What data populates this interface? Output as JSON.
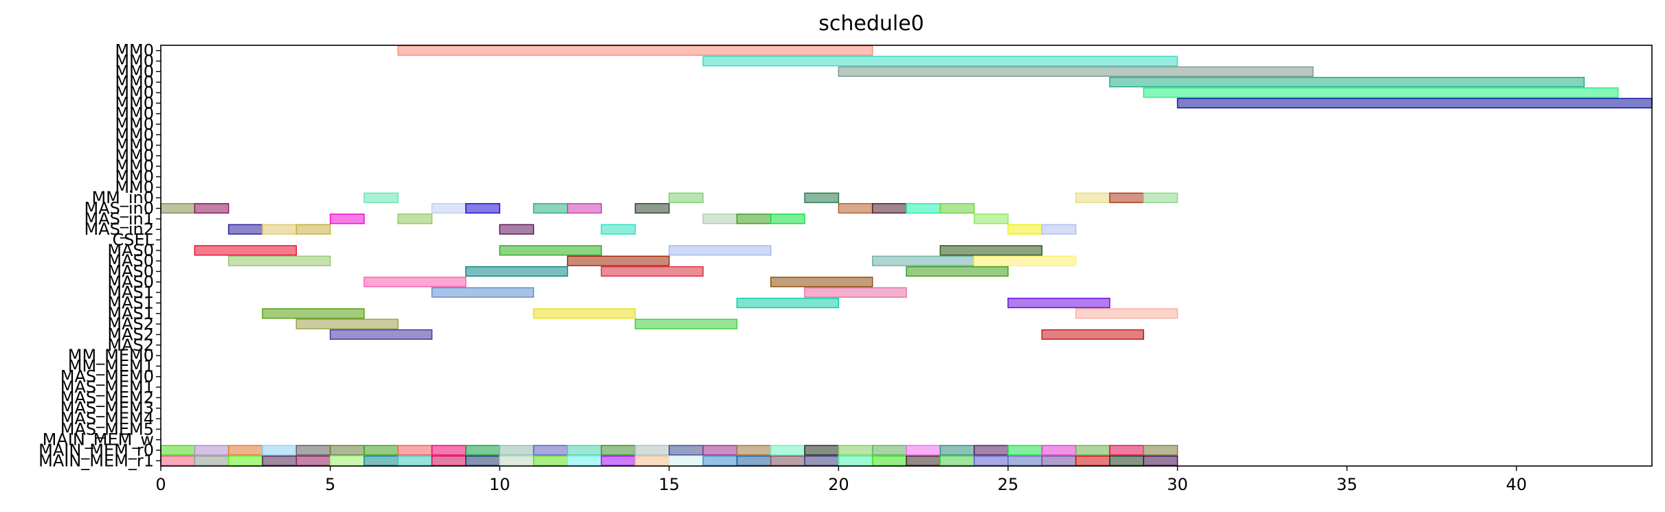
{
  "chart_data": {
    "type": "gantt",
    "title": "schedule0",
    "xlabel": "",
    "ylabel": "",
    "xlim": [
      0,
      44
    ],
    "xticks": [
      0,
      5,
      10,
      15,
      20,
      25,
      30,
      35,
      40
    ],
    "grid": false,
    "rows": [
      "MM0",
      "MM0",
      "MM0",
      "MM0",
      "MM0",
      "MM0",
      "MM0",
      "MM0",
      "MM0",
      "MM0",
      "MM0",
      "MM0",
      "MM0",
      "MM0",
      "MM_in0",
      "MAS_in0",
      "MAS_in1",
      "MAS_in2",
      "CSEL",
      "MAS0",
      "MAS0",
      "MAS0",
      "MAS0",
      "MAS1",
      "MAS1",
      "MAS1",
      "MAS2",
      "MAS2",
      "MAS2",
      "MM_MEM0",
      "MM_MEM1",
      "MAS_MEM0",
      "MAS_MEM1",
      "MAS_MEM2",
      "MAS_MEM3",
      "MAS_MEM4",
      "MAS_MEM5",
      "MAIN_MEM_w",
      "MAIN_MEM_r0",
      "MAIN_MEM_r1"
    ],
    "tasks": [
      {
        "row": 0,
        "start": 7,
        "end": 21,
        "color": "#f98c7c"
      },
      {
        "row": 1,
        "start": 16,
        "end": 30,
        "color": "#3fdcc4"
      },
      {
        "row": 2,
        "start": 20,
        "end": 34,
        "color": "#7f9c90"
      },
      {
        "row": 3,
        "start": 28,
        "end": 42,
        "color": "#22b08a"
      },
      {
        "row": 4,
        "start": 29,
        "end": 43,
        "color": "#24f080"
      },
      {
        "row": 5,
        "start": 30,
        "end": 44,
        "color": "#1414a0"
      },
      {
        "row": 14,
        "start": 6,
        "end": 7,
        "color": "#66e8b0"
      },
      {
        "row": 14,
        "start": 15,
        "end": 16,
        "color": "#7ed072"
      },
      {
        "row": 14,
        "start": 19,
        "end": 20,
        "color": "#2a7a50"
      },
      {
        "row": 14,
        "start": 27,
        "end": 28,
        "color": "#e8dc80"
      },
      {
        "row": 14,
        "start": 28,
        "end": 29,
        "color": "#b03a20"
      },
      {
        "row": 14,
        "start": 29,
        "end": 30,
        "color": "#90d890"
      },
      {
        "row": 15,
        "start": 0,
        "end": 1,
        "color": "#889050"
      },
      {
        "row": 15,
        "start": 1,
        "end": 2,
        "color": "#8a1a5a"
      },
      {
        "row": 15,
        "start": 8,
        "end": 9,
        "color": "#c0d0f0"
      },
      {
        "row": 15,
        "start": 9,
        "end": 10,
        "color": "#2010d0"
      },
      {
        "row": 15,
        "start": 11,
        "end": 12,
        "color": "#30b080"
      },
      {
        "row": 15,
        "start": 12,
        "end": 13,
        "color": "#d040b0"
      },
      {
        "row": 15,
        "start": 14,
        "end": 15,
        "color": "#304a30"
      },
      {
        "row": 15,
        "start": 20,
        "end": 21,
        "color": "#b86030"
      },
      {
        "row": 15,
        "start": 21,
        "end": 22,
        "color": "#502030"
      },
      {
        "row": 15,
        "start": 22,
        "end": 23,
        "color": "#20f0b0"
      },
      {
        "row": 15,
        "start": 23,
        "end": 24,
        "color": "#70d040"
      },
      {
        "row": 16,
        "start": 5,
        "end": 6,
        "color": "#ee10d0"
      },
      {
        "row": 16,
        "start": 7,
        "end": 8,
        "color": "#90c860"
      },
      {
        "row": 16,
        "start": 16,
        "end": 17,
        "color": "#b0d0b0"
      },
      {
        "row": 16,
        "start": 17,
        "end": 18,
        "color": "#40a020"
      },
      {
        "row": 16,
        "start": 18,
        "end": 19,
        "color": "#10e040"
      },
      {
        "row": 16,
        "start": 24,
        "end": 25,
        "color": "#90e860"
      },
      {
        "row": 17,
        "start": 2,
        "end": 3,
        "color": "#3020a0"
      },
      {
        "row": 17,
        "start": 3,
        "end": 4,
        "color": "#e0c870"
      },
      {
        "row": 17,
        "start": 4,
        "end": 5,
        "color": "#c8b040"
      },
      {
        "row": 17,
        "start": 10,
        "end": 11,
        "color": "#601858"
      },
      {
        "row": 17,
        "start": 13,
        "end": 14,
        "color": "#30e0c0"
      },
      {
        "row": 17,
        "start": 25,
        "end": 26,
        "color": "#f0f020"
      },
      {
        "row": 17,
        "start": 26,
        "end": 27,
        "color": "#b0c0f0"
      },
      {
        "row": 19,
        "start": 1,
        "end": 4,
        "color": "#e81030"
      },
      {
        "row": 19,
        "start": 10,
        "end": 13,
        "color": "#30b020"
      },
      {
        "row": 19,
        "start": 15,
        "end": 18,
        "color": "#a8b8f0"
      },
      {
        "row": 19,
        "start": 23,
        "end": 26,
        "color": "#2e5a18"
      },
      {
        "row": 20,
        "start": 2,
        "end": 5,
        "color": "#98c870"
      },
      {
        "row": 20,
        "start": 12,
        "end": 15,
        "color": "#a02808"
      },
      {
        "row": 20,
        "start": 21,
        "end": 24,
        "color": "#70b0a8"
      },
      {
        "row": 20,
        "start": 24,
        "end": 27,
        "color": "#fff070"
      },
      {
        "row": 21,
        "start": 9,
        "end": 12,
        "color": "#108888"
      },
      {
        "row": 21,
        "start": 13,
        "end": 16,
        "color": "#d83040"
      },
      {
        "row": 21,
        "start": 22,
        "end": 25,
        "color": "#40a020"
      },
      {
        "row": 22,
        "start": 6,
        "end": 9,
        "color": "#f860b0"
      },
      {
        "row": 22,
        "start": 18,
        "end": 21,
        "color": "#905010"
      },
      {
        "row": 23,
        "start": 8,
        "end": 11,
        "color": "#6090d0"
      },
      {
        "row": 23,
        "start": 19,
        "end": 22,
        "color": "#e870a8"
      },
      {
        "row": 24,
        "start": 17,
        "end": 20,
        "color": "#10d0a8"
      },
      {
        "row": 24,
        "start": 25,
        "end": 28,
        "color": "#7010e0"
      },
      {
        "row": 25,
        "start": 3,
        "end": 6,
        "color": "#58a010"
      },
      {
        "row": 25,
        "start": 11,
        "end": 14,
        "color": "#e8e020"
      },
      {
        "row": 25,
        "start": 27,
        "end": 30,
        "color": "#f8b0a0"
      },
      {
        "row": 26,
        "start": 4,
        "end": 7,
        "color": "#a0a050"
      },
      {
        "row": 26,
        "start": 14,
        "end": 17,
        "color": "#40d040"
      },
      {
        "row": 27,
        "start": 5,
        "end": 8,
        "color": "#4838a0"
      },
      {
        "row": 27,
        "start": 26,
        "end": 29,
        "color": "#c81818"
      }
    ],
    "memory_rows": [
      {
        "row": 38,
        "colors": [
          "#50d820",
          "#b090d0",
          "#e07830",
          "#90d0f0",
          "#606060",
          "#6a8040",
          "#40a020",
          "#f06060",
          "#f00870",
          "#10a040",
          "#90c0b0",
          "#6060c0",
          "#50d0b0",
          "#409030",
          "#b0c0c0",
          "#405090",
          "#a03090",
          "#a07840",
          "#70f0c0",
          "#203020",
          "#80d060",
          "#60b060",
          "#f070f0",
          "#309080",
          "#502060",
          "#20e050",
          "#e040d0",
          "#70b050",
          "#e01050",
          "#808040"
        ]
      },
      {
        "row": 39,
        "colors": [
          "#f06080",
          "#90a090",
          "#60f020",
          "#502850",
          "#902060",
          "#a0f070",
          "#108890",
          "#40c8c0",
          "#d01060",
          "#203870",
          "#c0d8c0",
          "#60e020",
          "#70f0f0",
          "#a010f0",
          "#f0c090",
          "#d0f0f0",
          "#4090d0",
          "#2060a0",
          "#805060",
          "#404080",
          "#50f0b0",
          "#40e020",
          "#402828",
          "#50d050",
          "#6060d0",
          "#6070c0",
          "#7050a0",
          "#d01010",
          "#204020",
          "#401050"
        ]
      }
    ]
  }
}
